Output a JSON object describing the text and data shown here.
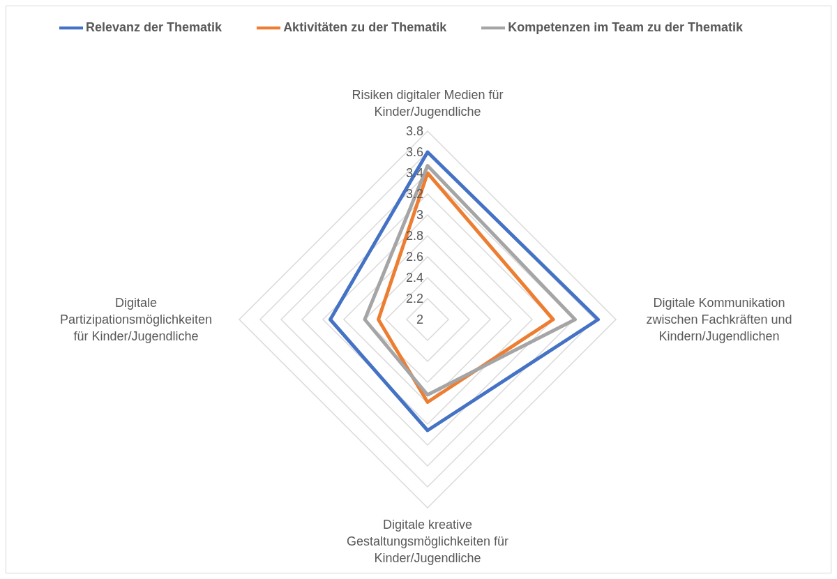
{
  "chart_data": {
    "type": "radar",
    "categories": [
      "Risiken digitaler Medien für Kinder/Jugendliche",
      "Digitale Kommunikation zwischen Fachkräften und Kindern/Jugendlichen",
      "Digitale kreative Gestaltungsmöglichkeiten für Kinder/Jugendliche",
      "Digitale Partizipationsmöglichkeiten für Kinder/Jugendliche"
    ],
    "series": [
      {
        "name": "Relevanz der Thematik",
        "color": "#4472c4",
        "values": [
          3.6,
          3.63,
          3.06,
          2.93
        ]
      },
      {
        "name": "Aktivitäten zu der Thematik",
        "color": "#ed7d31",
        "values": [
          3.4,
          3.2,
          2.79,
          2.47
        ]
      },
      {
        "name": "Kompetenzen im Team zu der Thematik",
        "color": "#a5a5a5",
        "values": [
          3.47,
          3.41,
          2.72,
          2.6
        ]
      }
    ],
    "ylim": [
      2,
      3.8
    ],
    "yticks": [
      2,
      2.2,
      2.4,
      2.6,
      2.8,
      3,
      3.2,
      3.4,
      3.6,
      3.8
    ],
    "grid": true,
    "legend": "top",
    "marker": "none"
  }
}
